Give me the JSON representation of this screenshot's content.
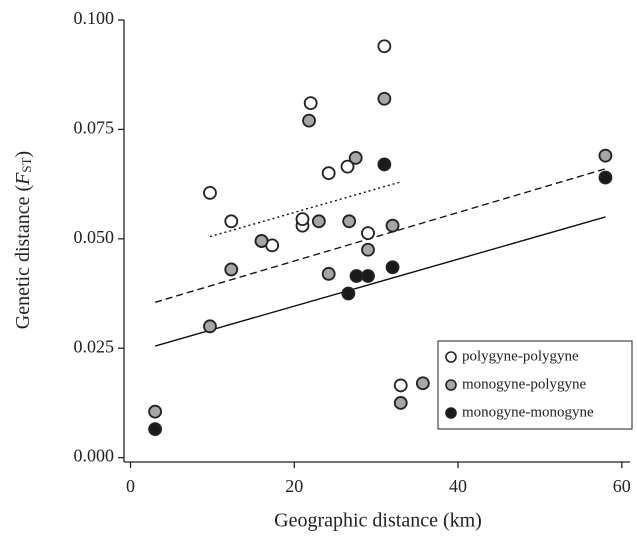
{
  "chart_data": {
    "type": "scatter",
    "x_label": "Geographic distance (km)",
    "y_label": [
      "Genetic distance (",
      "F",
      "ST",
      ")"
    ],
    "xlim": [
      -0.8,
      61
    ],
    "xticks": [
      0,
      20,
      40,
      60
    ],
    "ylim": [
      -0.001,
      0.1
    ],
    "yticks": [
      {
        "value": 0,
        "label": "0.000"
      },
      {
        "value": 0.025,
        "label": "0.025"
      },
      {
        "value": 0.05,
        "label": "0.050"
      },
      {
        "value": 0.075,
        "label": "0.075"
      },
      {
        "value": 0.1,
        "label": "0.100"
      }
    ],
    "legend": "lower right",
    "series": [
      {
        "name": "monogyne-monogyne",
        "color": "#1a1a1a",
        "line_style": "solid",
        "x": [
          3,
          26.6,
          27.6,
          29.0,
          31.0,
          32.0,
          58.0
        ],
        "values": [
          0.0065,
          0.0375,
          0.0415,
          0.0415,
          0.067,
          0.0435,
          0.064
        ],
        "fit": {
          "x": [
            3,
            58
          ],
          "y": [
            0.0255,
            0.055
          ]
        }
      },
      {
        "name": "monogyne-polygyne",
        "color": "#a6a6a6",
        "line_style": "dashed",
        "x": [
          3,
          9.7,
          12.3,
          16.0,
          21.8,
          23.0,
          24.2,
          26.7,
          27.5,
          29.0,
          31.0,
          32.0,
          33.0,
          35.7,
          58.0
        ],
        "values": [
          0.0105,
          0.03,
          0.043,
          0.0495,
          0.077,
          0.054,
          0.042,
          0.054,
          0.0685,
          0.0475,
          0.082,
          0.053,
          0.0125,
          0.017,
          0.069
        ],
        "fit": {
          "x": [
            3,
            58
          ],
          "y": [
            0.0355,
            0.066
          ]
        }
      },
      {
        "name": "polygyne-polygyne",
        "color": "#ffffff",
        "line_style": "dotted",
        "x": [
          9.7,
          12.3,
          16.0,
          17.3,
          21.0,
          21.0,
          22.0,
          24.2,
          26.5,
          29.0,
          31.0,
          33.0
        ],
        "values": [
          0.0605,
          0.054,
          0.0495,
          0.0485,
          0.053,
          0.0545,
          0.081,
          0.065,
          0.0665,
          0.0513,
          0.094,
          0.0165
        ],
        "fit": {
          "x": [
            9.7,
            33
          ],
          "y": [
            0.0505,
            0.063
          ]
        }
      }
    ]
  }
}
